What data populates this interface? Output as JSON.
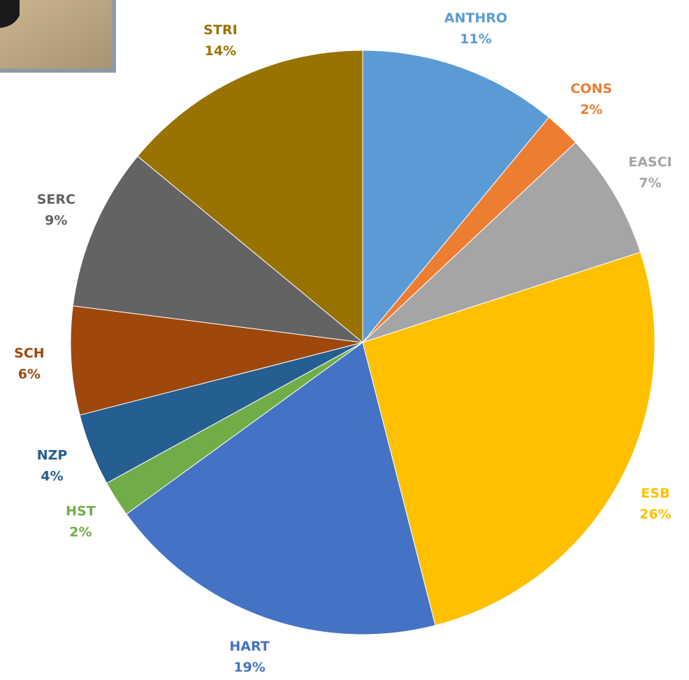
{
  "chart_data": {
    "type": "pie",
    "categories": [
      "ANTHRO",
      "CONS",
      "EASCI",
      "ESB",
      "HART",
      "HST",
      "NZP",
      "SCH",
      "SERC",
      "STRI"
    ],
    "values": [
      11,
      2,
      7,
      26,
      19,
      2,
      4,
      6,
      9,
      14
    ],
    "value_labels": [
      "11%",
      "2%",
      "7%",
      "26%",
      "19%",
      "2%",
      "4%",
      "6%",
      "9%",
      "14%"
    ],
    "colors": [
      "#5b9bd5",
      "#ed7d31",
      "#a5a5a5",
      "#ffc000",
      "#4472c4",
      "#70ad47",
      "#255e91",
      "#9e480e",
      "#636363",
      "#997300"
    ]
  }
}
